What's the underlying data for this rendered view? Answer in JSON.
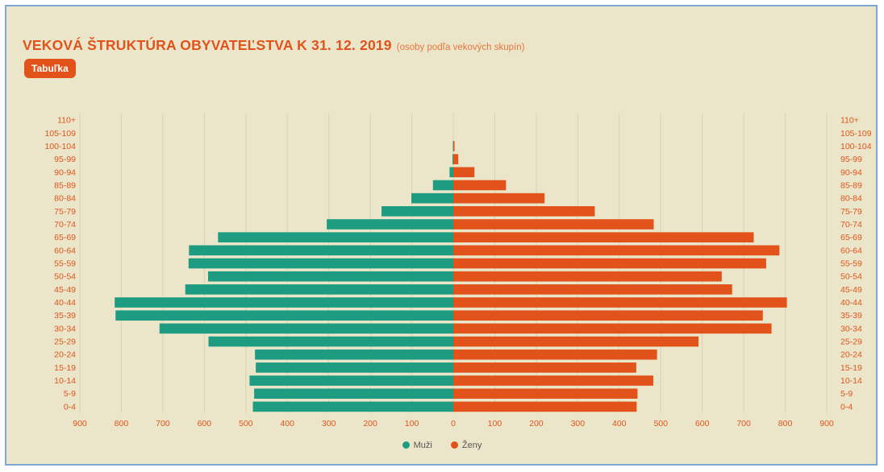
{
  "header": {
    "title": "VEKOVÁ ŠTRUKTÚRA OBYVATEĽSTVA K 31. 12. 2019",
    "subtitle": "(osoby podľa vekových skupín)",
    "table_button": "Tabuľka"
  },
  "colors": {
    "men": "#1e9c82",
    "women": "#e2531b",
    "background": "#ebe6ca",
    "grid": "#d9d2ae",
    "accent": "#e2531b"
  },
  "chart_data": {
    "type": "bar",
    "orientation": "horizontal",
    "layout": "population-pyramid",
    "title": "VEKOVÁ ŠTRUKTÚRA OBYVATEĽSTVA K 31. 12. 2019",
    "subtitle": "(osoby podľa vekových skupín)",
    "categories": [
      "0-4",
      "5-9",
      "10-14",
      "15-19",
      "20-24",
      "25-29",
      "30-34",
      "35-39",
      "40-44",
      "45-49",
      "50-54",
      "55-59",
      "60-64",
      "65-69",
      "70-74",
      "75-79",
      "80-84",
      "85-89",
      "90-94",
      "95-99",
      "100-104",
      "105-109",
      "110+"
    ],
    "series": [
      {
        "name": "Muži",
        "color": "#1e9c82",
        "values": [
          483,
          480,
          491,
          476,
          478,
          590,
          708,
          814,
          816,
          646,
          591,
          638,
          637,
          567,
          305,
          173,
          101,
          49,
          9,
          2,
          1,
          0,
          0
        ]
      },
      {
        "name": "Ženy",
        "color": "#e2531b",
        "values": [
          442,
          444,
          482,
          441,
          491,
          591,
          767,
          746,
          804,
          672,
          647,
          754,
          786,
          724,
          483,
          341,
          220,
          127,
          51,
          12,
          3,
          0,
          0
        ]
      }
    ],
    "xlim": [
      -900,
      900
    ],
    "xticks": [
      -900,
      -800,
      -700,
      -600,
      -500,
      -400,
      -300,
      -200,
      -100,
      0,
      100,
      200,
      300,
      400,
      500,
      600,
      700,
      800,
      900
    ],
    "xtick_labels": [
      "900",
      "800",
      "700",
      "600",
      "500",
      "400",
      "300",
      "200",
      "100",
      "0",
      "100",
      "200",
      "300",
      "400",
      "500",
      "600",
      "700",
      "800",
      "900"
    ],
    "grid": true,
    "legend": {
      "position": "bottom-center",
      "labels": [
        "Muži",
        "Ženy"
      ]
    }
  }
}
